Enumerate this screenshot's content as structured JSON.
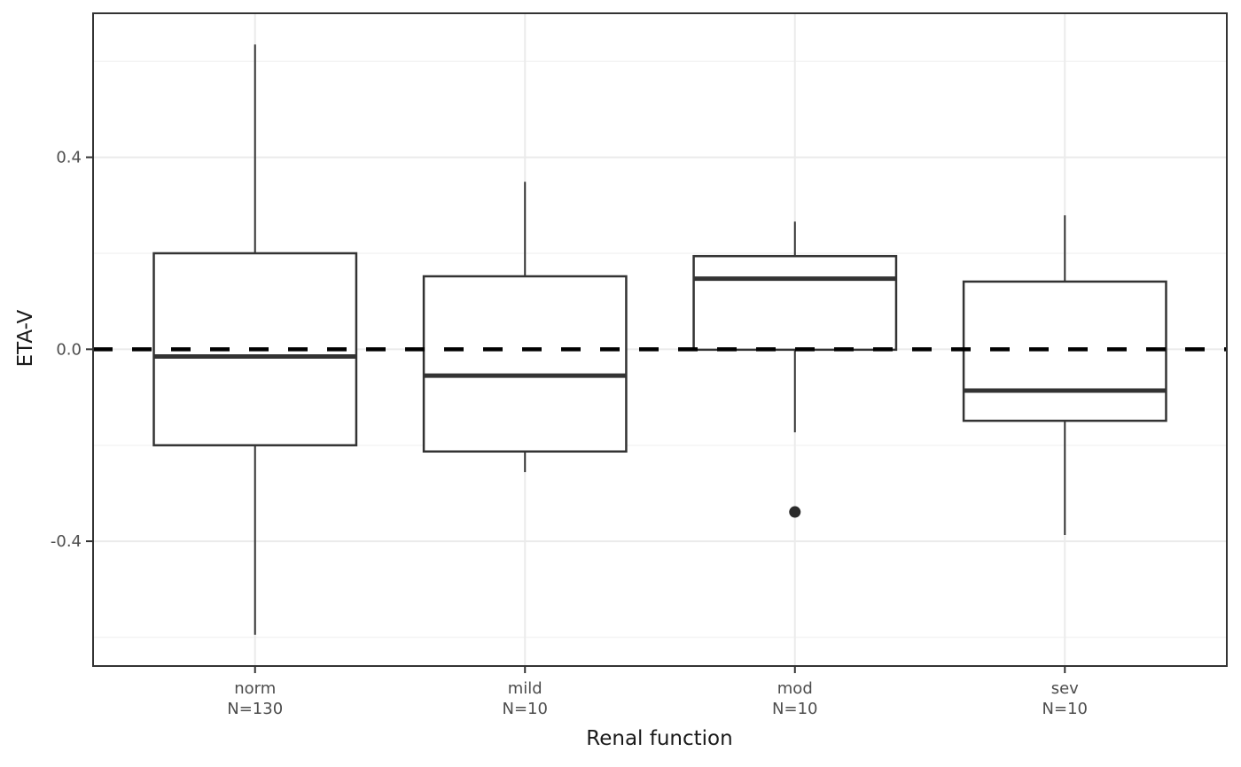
{
  "chart_data": {
    "type": "boxplot",
    "title": "",
    "xlabel": "Renal function",
    "ylabel": "ETA-V",
    "categories": [
      "norm",
      "mild",
      "mod",
      "sev"
    ],
    "category_counts": [
      "N=130",
      "N=10",
      "N=10",
      "N=10"
    ],
    "series": [
      {
        "category": "norm",
        "count_label": "N=130",
        "whisker_low": -0.595,
        "q1": -0.2,
        "median": -0.015,
        "q3": 0.2,
        "whisker_high": 0.635,
        "outliers": []
      },
      {
        "category": "mild",
        "count_label": "N=10",
        "whisker_low": -0.256,
        "q1": -0.213,
        "median": -0.055,
        "q3": 0.152,
        "whisker_high": 0.349,
        "outliers": []
      },
      {
        "category": "mod",
        "count_label": "N=10",
        "whisker_low": -0.173,
        "q1": -0.001,
        "median": 0.147,
        "q3": 0.194,
        "whisker_high": 0.266,
        "outliers": [
          -0.339
        ]
      },
      {
        "category": "sev",
        "count_label": "N=10",
        "whisker_low": -0.387,
        "q1": -0.149,
        "median": -0.086,
        "q3": 0.141,
        "whisker_high": 0.279,
        "outliers": []
      }
    ],
    "reference_line": {
      "y": 0.0,
      "style": "dashed"
    },
    "y_axis": {
      "ylim": [
        -0.66,
        0.7
      ],
      "ticks": [
        {
          "value": 0.4,
          "label": "0.4"
        },
        {
          "value": 0.0,
          "label": "0.0"
        },
        {
          "value": -0.4,
          "label": "-0.4"
        }
      ],
      "minor_ticks": [
        0.6,
        0.2,
        -0.2,
        -0.6
      ]
    },
    "layout_hints": {
      "grid": "horizontal major+minor, vertical major at category centers",
      "legend": "none",
      "box_fill": "white"
    },
    "colors": {
      "background": "#ffffff",
      "panel_background": "#ffffff",
      "panel_border": "#333333",
      "grid_major": "#ebebeb",
      "grid_minor": "#f4f4f4",
      "box_stroke": "#333333",
      "median": "#333333",
      "whisker": "#333333",
      "outlier": "#2b2b2b",
      "reference_line": "#000000",
      "tick_mark": "#333333",
      "tick_label": "#4d4d4d",
      "axis_title": "#1a1a1a"
    }
  }
}
